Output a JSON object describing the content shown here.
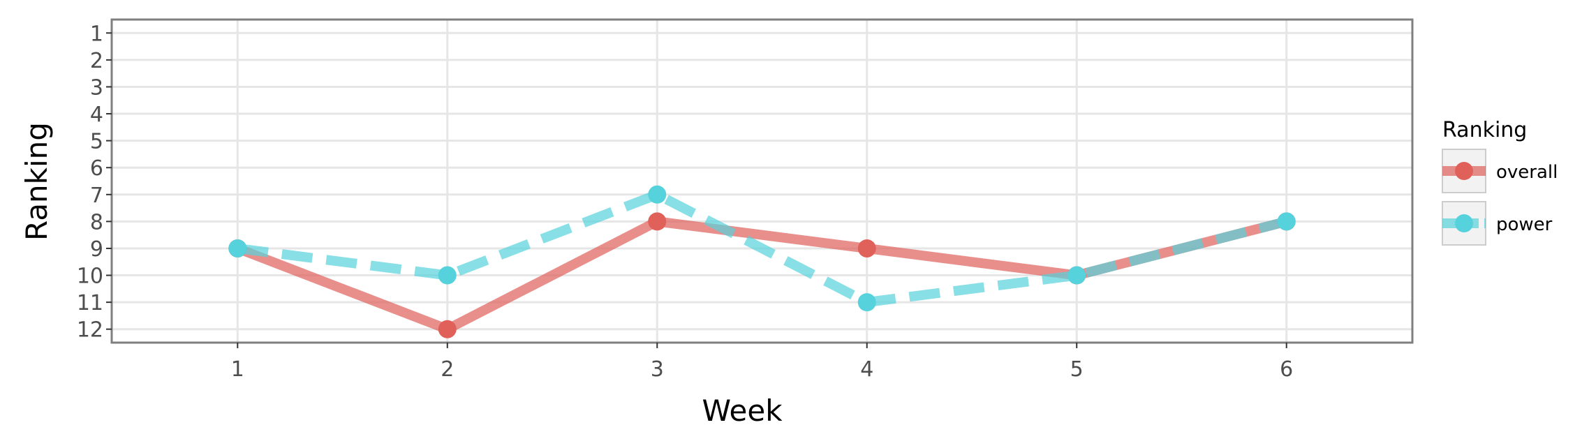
{
  "chart_data": {
    "type": "line",
    "xlabel": "Week",
    "ylabel": "Ranking",
    "x": [
      1,
      2,
      3,
      4,
      5,
      6
    ],
    "x_ticks": [
      "1",
      "2",
      "3",
      "4",
      "5",
      "6"
    ],
    "xlim": [
      0.4,
      6.6
    ],
    "y_ticks": [
      "1",
      "2",
      "3",
      "4",
      "5",
      "6",
      "7",
      "8",
      "9",
      "10",
      "11",
      "12"
    ],
    "ylim": [
      12.5,
      0.5
    ],
    "y_reversed": true,
    "grid": true,
    "legend": {
      "title": "Ranking",
      "position": "right"
    },
    "series": [
      {
        "name": "overall",
        "values": [
          9,
          12,
          8,
          9,
          10,
          8
        ],
        "color": "#e0605a",
        "line_style": "solid"
      },
      {
        "name": "power",
        "values": [
          9,
          10,
          7,
          11,
          10,
          8
        ],
        "color": "#56d2dc",
        "line_style": "dashed"
      }
    ]
  }
}
